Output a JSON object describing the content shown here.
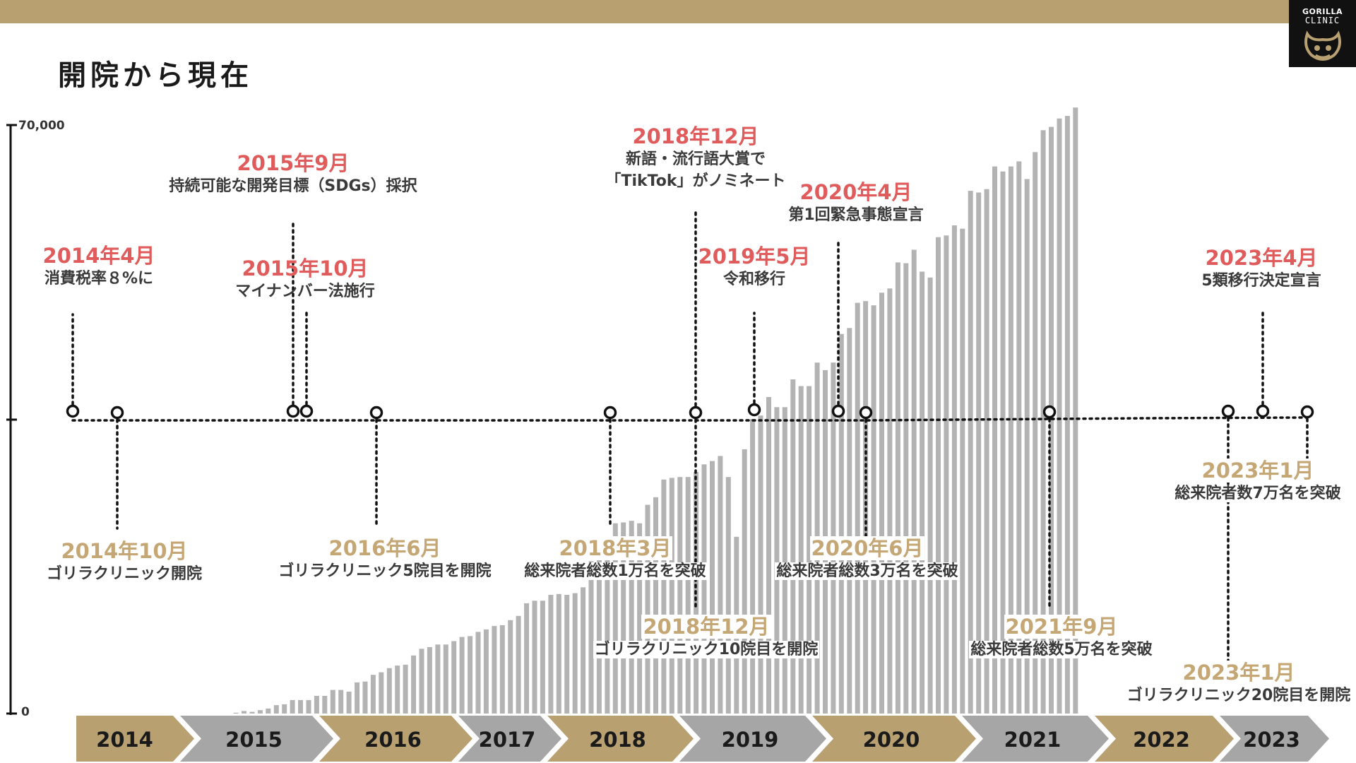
{
  "header": {
    "title": "開院から現在"
  },
  "logo": {
    "name": "GORILLA",
    "sub": "CLINIC",
    "icon": "gorilla-icon"
  },
  "colors": {
    "topbar": "#B9A071",
    "bars": "#B3B3B3",
    "above_date": "#E05C5C",
    "below_date": "#C4A774",
    "year_gold": "#B9A071",
    "year_gray": "#A6A6A6"
  },
  "chart_data": {
    "type": "bar",
    "ylim": [
      0,
      70000
    ],
    "yticks": [
      "70,000",
      "0"
    ],
    "years": [
      "2014",
      "2015",
      "2016",
      "2017",
      "2018",
      "2019",
      "2020",
      "2021",
      "2022",
      "2023"
    ],
    "series": [
      {
        "values": [
          0,
          0,
          0,
          0,
          0,
          0,
          0,
          0,
          0,
          0,
          0,
          0,
          0,
          0,
          0,
          0,
          0,
          0,
          0,
          0,
          100,
          300,
          200,
          400,
          600,
          1000,
          1100,
          1600,
          1600,
          1600,
          2100,
          2100,
          2800,
          2800,
          2600,
          3700,
          3800,
          4600,
          4900,
          5400,
          5700,
          5800,
          6900,
          7700,
          7900,
          8200,
          8200,
          8600,
          9100,
          9200,
          9700,
          10000,
          10400,
          10500,
          11100,
          11600,
          13100,
          13400,
          13400,
          14100,
          14200,
          14100,
          14300,
          15000,
          18100,
          18600,
          20200,
          22600,
          22700,
          22900,
          22600,
          24800,
          25700,
          27800,
          28000,
          28100,
          28100,
          28700,
          29600,
          30000,
          30600,
          28100,
          21000,
          31400,
          35000,
          35400,
          37600,
          36400,
          36400,
          39700,
          38900,
          38900,
          41700,
          40800,
          41700,
          45100,
          45800,
          48800,
          49000,
          48500,
          50000,
          50500,
          53600,
          53500,
          55100,
          52500,
          51800,
          56600,
          56800,
          58000,
          57600,
          62100,
          61900,
          62300,
          65000,
          64400,
          65000,
          65600,
          63500,
          66700,
          69300,
          69700,
          70700,
          71000,
          72000
        ]
      }
    ]
  },
  "events_above": [
    {
      "date": "2014年4月",
      "text": "消費税率８%に"
    },
    {
      "date": "2015年9月",
      "text": "持続可能な開発目標（SDGs）採択"
    },
    {
      "date": "2015年10月",
      "text": "マイナンバー法施行"
    },
    {
      "date": "2018年12月",
      "text": "新語・流行語大賞で",
      "text2": "「TikTok」がノミネート"
    },
    {
      "date": "2019年5月",
      "text": "令和移行"
    },
    {
      "date": "2020年4月",
      "text": "第1回緊急事態宣言"
    },
    {
      "date": "2023年4月",
      "text": "5類移行決定宣言"
    }
  ],
  "events_below": [
    {
      "date": "2014年10月",
      "text": "ゴリラクリニック開院"
    },
    {
      "date": "2016年6月",
      "text": "ゴリラクリニック5院目を開院"
    },
    {
      "date": "2018年3月",
      "text": "総来院者総数1万名を突破"
    },
    {
      "date": "2018年12月",
      "text": "ゴリラクリニック10院目を開院"
    },
    {
      "date": "2020年6月",
      "text": "総来院者総数3万名を突破"
    },
    {
      "date": "2021年9月",
      "text": "総来院者総数5万名を突破"
    },
    {
      "date": "2023年1月",
      "text": "ゴリラクリニック20院目を開院"
    },
    {
      "date": "2023年1月",
      "text": "総来院者数7万名を突破"
    }
  ]
}
